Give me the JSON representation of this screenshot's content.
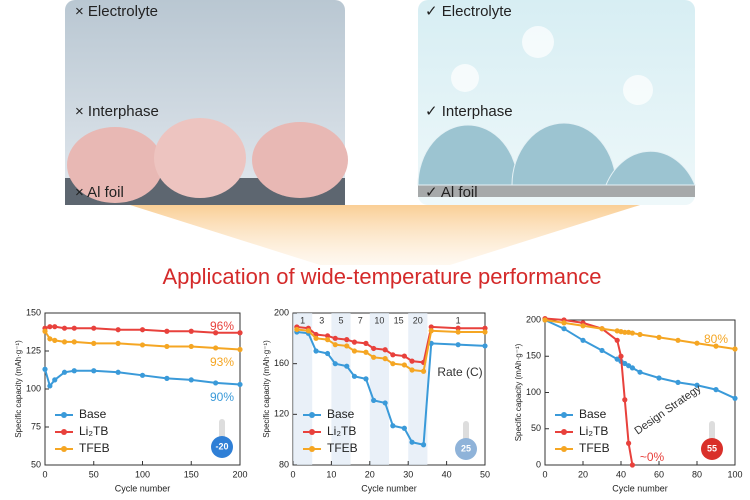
{
  "headline": "Application of wide-temperature performance",
  "illustration": {
    "left": [
      "× Electrolyte",
      "× Interphase",
      "× Al foil"
    ],
    "right": [
      "✓ Electrolyte",
      "✓ Interphase",
      "✓ Al foil"
    ]
  },
  "chart_data": [
    {
      "type": "line",
      "xlabel": "Cycle number",
      "ylabel": "Specific capacity (mAh·g⁻¹)",
      "x": [
        0,
        5,
        10,
        20,
        30,
        50,
        75,
        100,
        125,
        150,
        175,
        200
      ],
      "xlim": [
        0,
        200
      ],
      "xticks": [
        0,
        50,
        100,
        150,
        200
      ],
      "ylim": [
        50,
        150
      ],
      "yticks": [
        50,
        75,
        100,
        125,
        150
      ],
      "series": [
        {
          "name": "Base",
          "color": "#3a9ad9",
          "values": [
            113,
            102,
            106,
            111,
            112,
            112,
            111,
            109,
            107,
            106,
            104,
            103
          ]
        },
        {
          "name": "Li₂TB",
          "color": "#e8413c",
          "values": [
            140,
            141,
            141,
            140,
            140,
            140,
            139,
            139,
            138,
            138,
            137,
            137
          ]
        },
        {
          "name": "TFEB",
          "color": "#f5a623",
          "values": [
            138,
            133,
            132,
            131,
            131,
            130,
            130,
            129,
            128,
            128,
            127,
            126
          ]
        }
      ],
      "annotations": [
        {
          "text": "96%",
          "color": "#e8413c"
        },
        {
          "text": "93%",
          "color": "#f5a623"
        },
        {
          "text": "90%",
          "color": "#3a9ad9"
        }
      ],
      "badge": "-20",
      "badge_color": "#2f7fd6"
    },
    {
      "type": "line",
      "xlabel": "Cycle number",
      "ylabel": "Specific capacity (mAh·g⁻¹)",
      "x": [
        1,
        4,
        6,
        9,
        11,
        14,
        16,
        19,
        21,
        24,
        26,
        29,
        31,
        34,
        36,
        43,
        50
      ],
      "xlim": [
        0,
        50
      ],
      "xticks": [
        0,
        10,
        20,
        30,
        40,
        50
      ],
      "ylim": [
        80,
        200
      ],
      "yticks": [
        80,
        120,
        160,
        200
      ],
      "series": [
        {
          "name": "Base",
          "color": "#3a9ad9",
          "values": [
            185,
            184,
            170,
            168,
            160,
            158,
            150,
            148,
            131,
            129,
            111,
            109,
            98,
            96,
            176,
            175,
            174
          ]
        },
        {
          "name": "Li₂TB",
          "color": "#e8413c",
          "values": [
            189,
            188,
            183,
            182,
            180,
            179,
            177,
            176,
            172,
            171,
            167,
            166,
            162,
            161,
            189,
            188,
            188
          ]
        },
        {
          "name": "TFEB",
          "color": "#f5a623",
          "values": [
            187,
            186,
            180,
            179,
            175,
            174,
            170,
            169,
            165,
            164,
            160,
            159,
            155,
            154,
            186,
            185,
            185
          ]
        }
      ],
      "rate_labels": [
        "1",
        "3",
        "5",
        "7",
        "10",
        "15",
        "20",
        "1"
      ],
      "annotations": [
        {
          "text": "Rate (C)",
          "color": "#333333"
        }
      ],
      "badge": "25",
      "badge_color": "#8fb3d9"
    },
    {
      "type": "line",
      "xlabel": "Cycle number",
      "ylabel": "Specific capacity (mAh·g⁻¹)",
      "x": [
        0,
        10,
        20,
        30,
        38,
        40,
        42,
        44,
        46,
        50,
        60,
        70,
        80,
        90,
        100
      ],
      "xlim": [
        0,
        100
      ],
      "xticks": [
        0,
        20,
        40,
        60,
        80,
        100
      ],
      "ylim": [
        0,
        200
      ],
      "yticks": [
        0,
        50,
        100,
        150,
        200
      ],
      "series": [
        {
          "name": "Base",
          "color": "#3a9ad9",
          "values": [
            200,
            188,
            172,
            158,
            146,
            143,
            140,
            137,
            134,
            128,
            120,
            114,
            110,
            104,
            92
          ]
        },
        {
          "name": "Li₂TB",
          "color": "#e8413c",
          "values": [
            202,
            200,
            196,
            188,
            172,
            150,
            90,
            30,
            0,
            null,
            null,
            null,
            null,
            null,
            null
          ]
        },
        {
          "name": "TFEB",
          "color": "#f5a623",
          "values": [
            200,
            196,
            192,
            188,
            185,
            184,
            183,
            183,
            182,
            180,
            176,
            172,
            168,
            164,
            160
          ]
        }
      ],
      "annotations": [
        {
          "text": "80%",
          "color": "#f5a623"
        },
        {
          "text": "Design Strategy",
          "color": "#333333"
        },
        {
          "text": "~0%",
          "color": "#e8413c"
        }
      ],
      "badge": "55",
      "badge_color": "#d9302a"
    }
  ]
}
